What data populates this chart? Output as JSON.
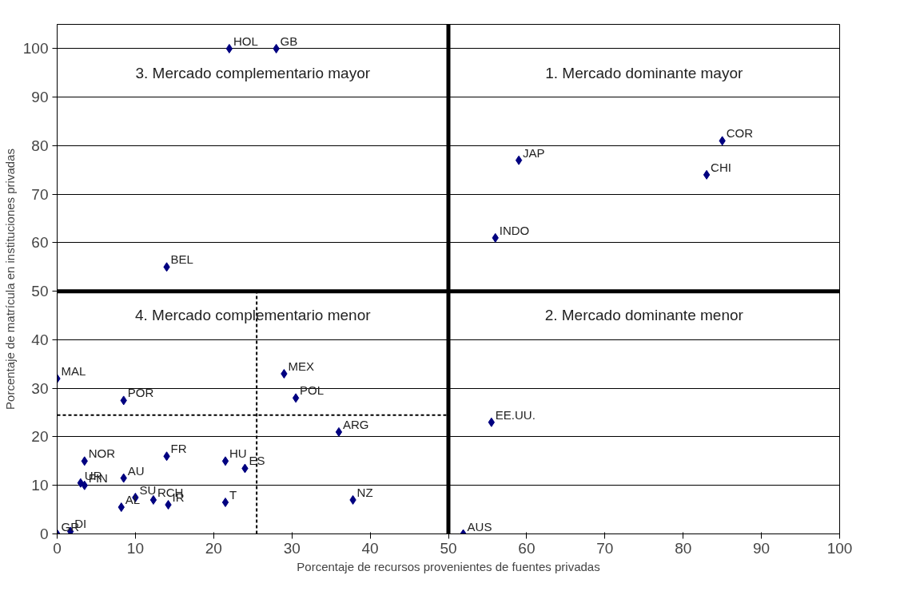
{
  "chart_data": {
    "type": "scatter",
    "xlabel": "Porcentaje de recursos provenientes de fuentes privadas",
    "ylabel": "Porcentaje de matrícula en instituciones privadas",
    "xlim": [
      0,
      100
    ],
    "ylim": [
      0,
      105
    ],
    "xticks": [
      0,
      10,
      20,
      30,
      40,
      50,
      60,
      70,
      80,
      90,
      100
    ],
    "yticks": [
      0,
      10,
      20,
      30,
      40,
      50,
      60,
      70,
      80,
      90,
      100
    ],
    "grid": "y",
    "marker": "diamond",
    "series": [
      {
        "color": "#000080",
        "x": [
          22,
          28,
          14,
          59,
          85,
          83,
          56,
          0,
          8.5,
          29,
          30.5,
          36,
          55.5,
          3.5,
          14,
          21.5,
          24,
          8.5,
          3,
          3.5,
          8.2,
          10,
          12.3,
          14.2,
          21.5,
          37.8,
          51.9,
          0,
          1.7
        ],
        "values": [
          100,
          100,
          55,
          77,
          81,
          74,
          61,
          32,
          27.5,
          33,
          28,
          21,
          23,
          15,
          16,
          15,
          13.5,
          11.5,
          10.5,
          10,
          5.5,
          7.5,
          7,
          6,
          6.5,
          7,
          0,
          0,
          0.5
        ]
      },
      {
        "type": "line",
        "marker": "none",
        "color": "#000000",
        "line_style": "dashed",
        "x": [
          25.5,
          25.5
        ],
        "values": [
          0,
          50
        ]
      },
      {
        "type": "line",
        "marker": "none",
        "color": "#000000",
        "line_style": "dashed",
        "x": [
          0,
          50
        ],
        "values": [
          24.5,
          24.5
        ]
      },
      {
        "type": "line",
        "marker": "none",
        "color": "#000000",
        "line_style": "solid",
        "x": [
          50,
          50
        ],
        "values": [
          0,
          105
        ]
      },
      {
        "type": "line",
        "marker": "none",
        "color": "#000000",
        "line_style": "solid",
        "x": [
          0,
          100
        ],
        "values": [
          50,
          50
        ]
      }
    ],
    "annotations": [
      {
        "text": "HOL",
        "x": 22,
        "y": 100
      },
      {
        "text": "GB",
        "x": 28,
        "y": 100
      },
      {
        "text": "BEL",
        "x": 14,
        "y": 55
      },
      {
        "text": "JAP",
        "x": 59,
        "y": 77
      },
      {
        "text": "COR",
        "x": 85,
        "y": 81
      },
      {
        "text": "CHI",
        "x": 83,
        "y": 74
      },
      {
        "text": "INDO",
        "x": 56,
        "y": 61
      },
      {
        "text": "MAL",
        "x": 0,
        "y": 32
      },
      {
        "text": "POR",
        "x": 8.5,
        "y": 27.5
      },
      {
        "text": "MEX",
        "x": 29,
        "y": 33
      },
      {
        "text": "POL",
        "x": 30.5,
        "y": 28
      },
      {
        "text": "ARG",
        "x": 36,
        "y": 21
      },
      {
        "text": "EE.UU.",
        "x": 55.5,
        "y": 23
      },
      {
        "text": "NOR",
        "x": 3.5,
        "y": 15
      },
      {
        "text": "FR",
        "x": 14,
        "y": 16
      },
      {
        "text": "HU",
        "x": 21.5,
        "y": 15
      },
      {
        "text": "ES",
        "x": 24,
        "y": 13.5
      },
      {
        "text": "AU",
        "x": 8.5,
        "y": 11.5
      },
      {
        "text": "UR",
        "x": 3,
        "y": 10.5
      },
      {
        "text": "FIN",
        "x": 3.5,
        "y": 10
      },
      {
        "text": "AL",
        "x": 8.2,
        "y": 5.5
      },
      {
        "text": "SU",
        "x": 10,
        "y": 7.5
      },
      {
        "text": "RCH",
        "x": 12.3,
        "y": 7
      },
      {
        "text": "IR",
        "x": 14.2,
        "y": 6
      },
      {
        "text": "T",
        "x": 21.5,
        "y": 6.5
      },
      {
        "text": "NZ",
        "x": 37.8,
        "y": 7
      },
      {
        "text": "AUS",
        "x": 51.9,
        "y": 0
      },
      {
        "text": "GR",
        "x": 0,
        "y": 0
      },
      {
        "text": "DI",
        "x": 1.7,
        "y": 0.5
      },
      "1. Mercado dominante mayor",
      "2. Mercado dominante menor",
      "3. Mercado complementario mayor",
      "4. Mercado complementario menor"
    ]
  }
}
